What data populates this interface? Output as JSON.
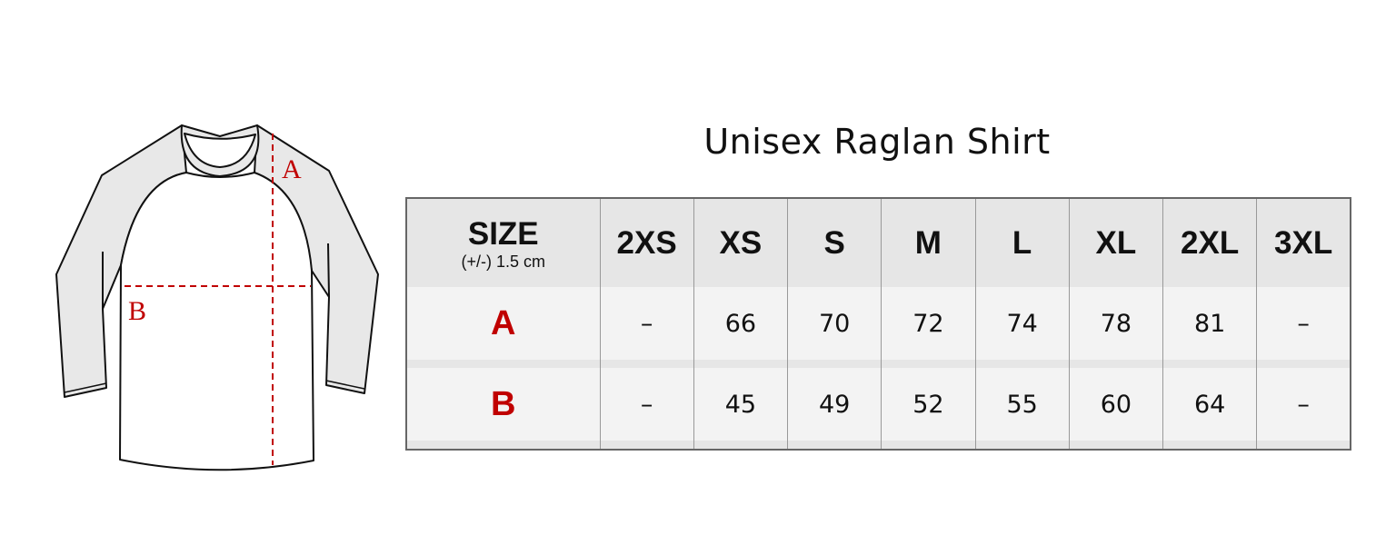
{
  "title": "Unisex Raglan Shirt",
  "diagram": {
    "label_a": "A",
    "label_b": "B",
    "measure_color": "#c00000"
  },
  "table": {
    "header": {
      "size_label": "SIZE",
      "tolerance": "(+/-) 1.5 cm"
    },
    "sizes": [
      "2XS",
      "XS",
      "S",
      "M",
      "L",
      "XL",
      "2XL",
      "3XL"
    ],
    "rows": [
      {
        "label": "A",
        "values": [
          "–",
          "66",
          "70",
          "72",
          "74",
          "78",
          "81",
          "–"
        ]
      },
      {
        "label": "B",
        "values": [
          "–",
          "45",
          "49",
          "52",
          "55",
          "60",
          "64",
          "–"
        ]
      }
    ]
  }
}
